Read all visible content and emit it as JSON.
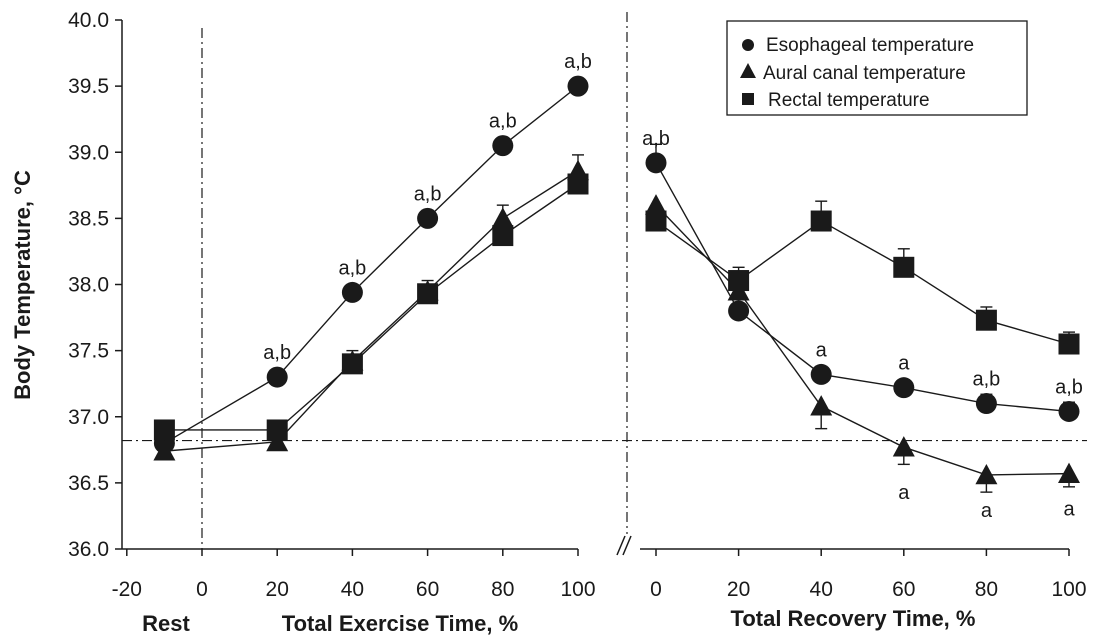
{
  "chart_data": {
    "type": "line",
    "ylabel": "Body Temperature, °C",
    "ylim": [
      36.0,
      40.0
    ],
    "yticks": [
      "36.0",
      "36.5",
      "37.0",
      "37.5",
      "38.0",
      "38.5",
      "39.0",
      "39.5",
      "40.0"
    ],
    "baseline_temperature": 36.82,
    "legend_position": "top-right",
    "panels": [
      {
        "id": "exercise",
        "xlabel": "Total Exercise Time, %",
        "xlim": [
          -20,
          100
        ],
        "xticks": [
          "-20",
          "0",
          "20",
          "40",
          "60",
          "80",
          "100"
        ],
        "x_label_rest": "Rest",
        "series": [
          {
            "name": "Esophageal temperature",
            "marker": "circle",
            "x": [
              -10,
              20,
              40,
              60,
              80,
              100
            ],
            "y": [
              36.8,
              37.3,
              37.94,
              38.5,
              39.05,
              39.5
            ],
            "err": [
              0,
              0,
              0,
              0,
              0,
              0
            ],
            "labels": [
              "",
              "a,b",
              "a,b",
              "a,b",
              "a,b",
              "a,b"
            ]
          },
          {
            "name": "Aural canal temperature",
            "marker": "triangle",
            "x": [
              -10,
              20,
              40,
              60,
              80,
              100
            ],
            "y": [
              36.74,
              36.81,
              37.42,
              37.95,
              38.5,
              38.86
            ],
            "err": [
              0,
              0,
              0.08,
              0.08,
              0.1,
              0.12
            ],
            "labels": [
              "",
              "",
              "",
              "",
              "",
              ""
            ]
          },
          {
            "name": "Rectal temperature",
            "marker": "square",
            "x": [
              -10,
              20,
              40,
              60,
              80,
              100
            ],
            "y": [
              36.9,
              36.9,
              37.4,
              37.93,
              38.37,
              38.76
            ],
            "err": [
              0,
              0,
              0,
              0,
              0,
              0
            ],
            "labels": [
              "",
              "",
              "",
              "",
              "",
              ""
            ]
          }
        ]
      },
      {
        "id": "recovery",
        "xlabel": "Total Recovery Time, %",
        "xlim": [
          0,
          100
        ],
        "xticks": [
          "0",
          "20",
          "40",
          "60",
          "80",
          "100"
        ],
        "series": [
          {
            "name": "Esophageal temperature",
            "marker": "circle",
            "x": [
              0,
              20,
              40,
              60,
              80,
              100
            ],
            "y": [
              38.92,
              37.8,
              37.32,
              37.22,
              37.1,
              37.04
            ],
            "err": [
              0.14,
              0,
              0.06,
              0.06,
              0.07,
              0.07
            ],
            "labels": [
              "a,b",
              "",
              "a",
              "a",
              "a,b",
              "a,b"
            ]
          },
          {
            "name": "Aural canal temperature",
            "marker": "triangle",
            "x": [
              0,
              20,
              40,
              60,
              80,
              100
            ],
            "y": [
              38.6,
              37.95,
              37.08,
              36.77,
              36.56,
              36.57
            ],
            "err": [
              0,
              0,
              0.17,
              0.13,
              0.13,
              0.1
            ],
            "labels": [
              "",
              "",
              "",
              "a",
              "a",
              "a"
            ]
          },
          {
            "name": "Rectal temperature",
            "marker": "square",
            "x": [
              0,
              20,
              40,
              60,
              80,
              100
            ],
            "y": [
              38.48,
              38.03,
              38.48,
              38.13,
              37.73,
              37.55
            ],
            "err": [
              0,
              0.1,
              0.15,
              0.14,
              0.1,
              0.09
            ],
            "labels": [
              "",
              "",
              "",
              "",
              "",
              ""
            ]
          }
        ]
      }
    ]
  }
}
